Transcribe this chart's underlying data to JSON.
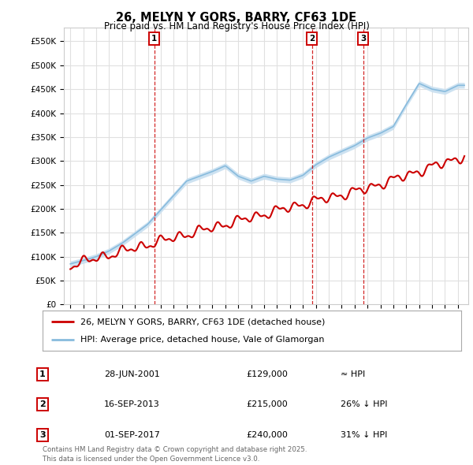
{
  "title": "26, MELYN Y GORS, BARRY, CF63 1DE",
  "subtitle": "Price paid vs. HM Land Registry's House Price Index (HPI)",
  "ylabel_ticks": [
    "£0",
    "£50K",
    "£100K",
    "£150K",
    "£200K",
    "£250K",
    "£300K",
    "£350K",
    "£400K",
    "£450K",
    "£500K",
    "£550K"
  ],
  "ytick_values": [
    0,
    50000,
    100000,
    150000,
    200000,
    250000,
    300000,
    350000,
    400000,
    450000,
    500000,
    550000
  ],
  "ylim": [
    0,
    578000
  ],
  "xlim_start": 1994.5,
  "xlim_end": 2025.8,
  "sale_markers": [
    {
      "year": 2001.49,
      "price": 129000,
      "label": "1"
    },
    {
      "year": 2013.71,
      "price": 215000,
      "label": "2"
    },
    {
      "year": 2017.67,
      "price": 240000,
      "label": "3"
    }
  ],
  "legend_entries": [
    {
      "label": "26, MELYN Y GORS, BARRY, CF63 1DE (detached house)",
      "color": "#cc0000",
      "lw": 2
    },
    {
      "label": "HPI: Average price, detached house, Vale of Glamorgan",
      "color": "#88bbdd",
      "lw": 2
    }
  ],
  "table_rows": [
    {
      "num": "1",
      "date": "28-JUN-2001",
      "price": "£129,000",
      "hpi": "≈ HPI"
    },
    {
      "num": "2",
      "date": "16-SEP-2013",
      "price": "£215,000",
      "hpi": "26% ↓ HPI"
    },
    {
      "num": "3",
      "date": "01-SEP-2017",
      "price": "£240,000",
      "hpi": "31% ↓ HPI"
    }
  ],
  "footer": "Contains HM Land Registry data © Crown copyright and database right 2025.\nThis data is licensed under the Open Government Licence v3.0.",
  "hpi_fill_color": "#c8dff0",
  "hpi_line_color": "#88bbdd",
  "sold_color": "#cc0000",
  "marker_box_color": "#cc0000",
  "grid_color": "#e0e0e0",
  "background_color": "#ffffff"
}
